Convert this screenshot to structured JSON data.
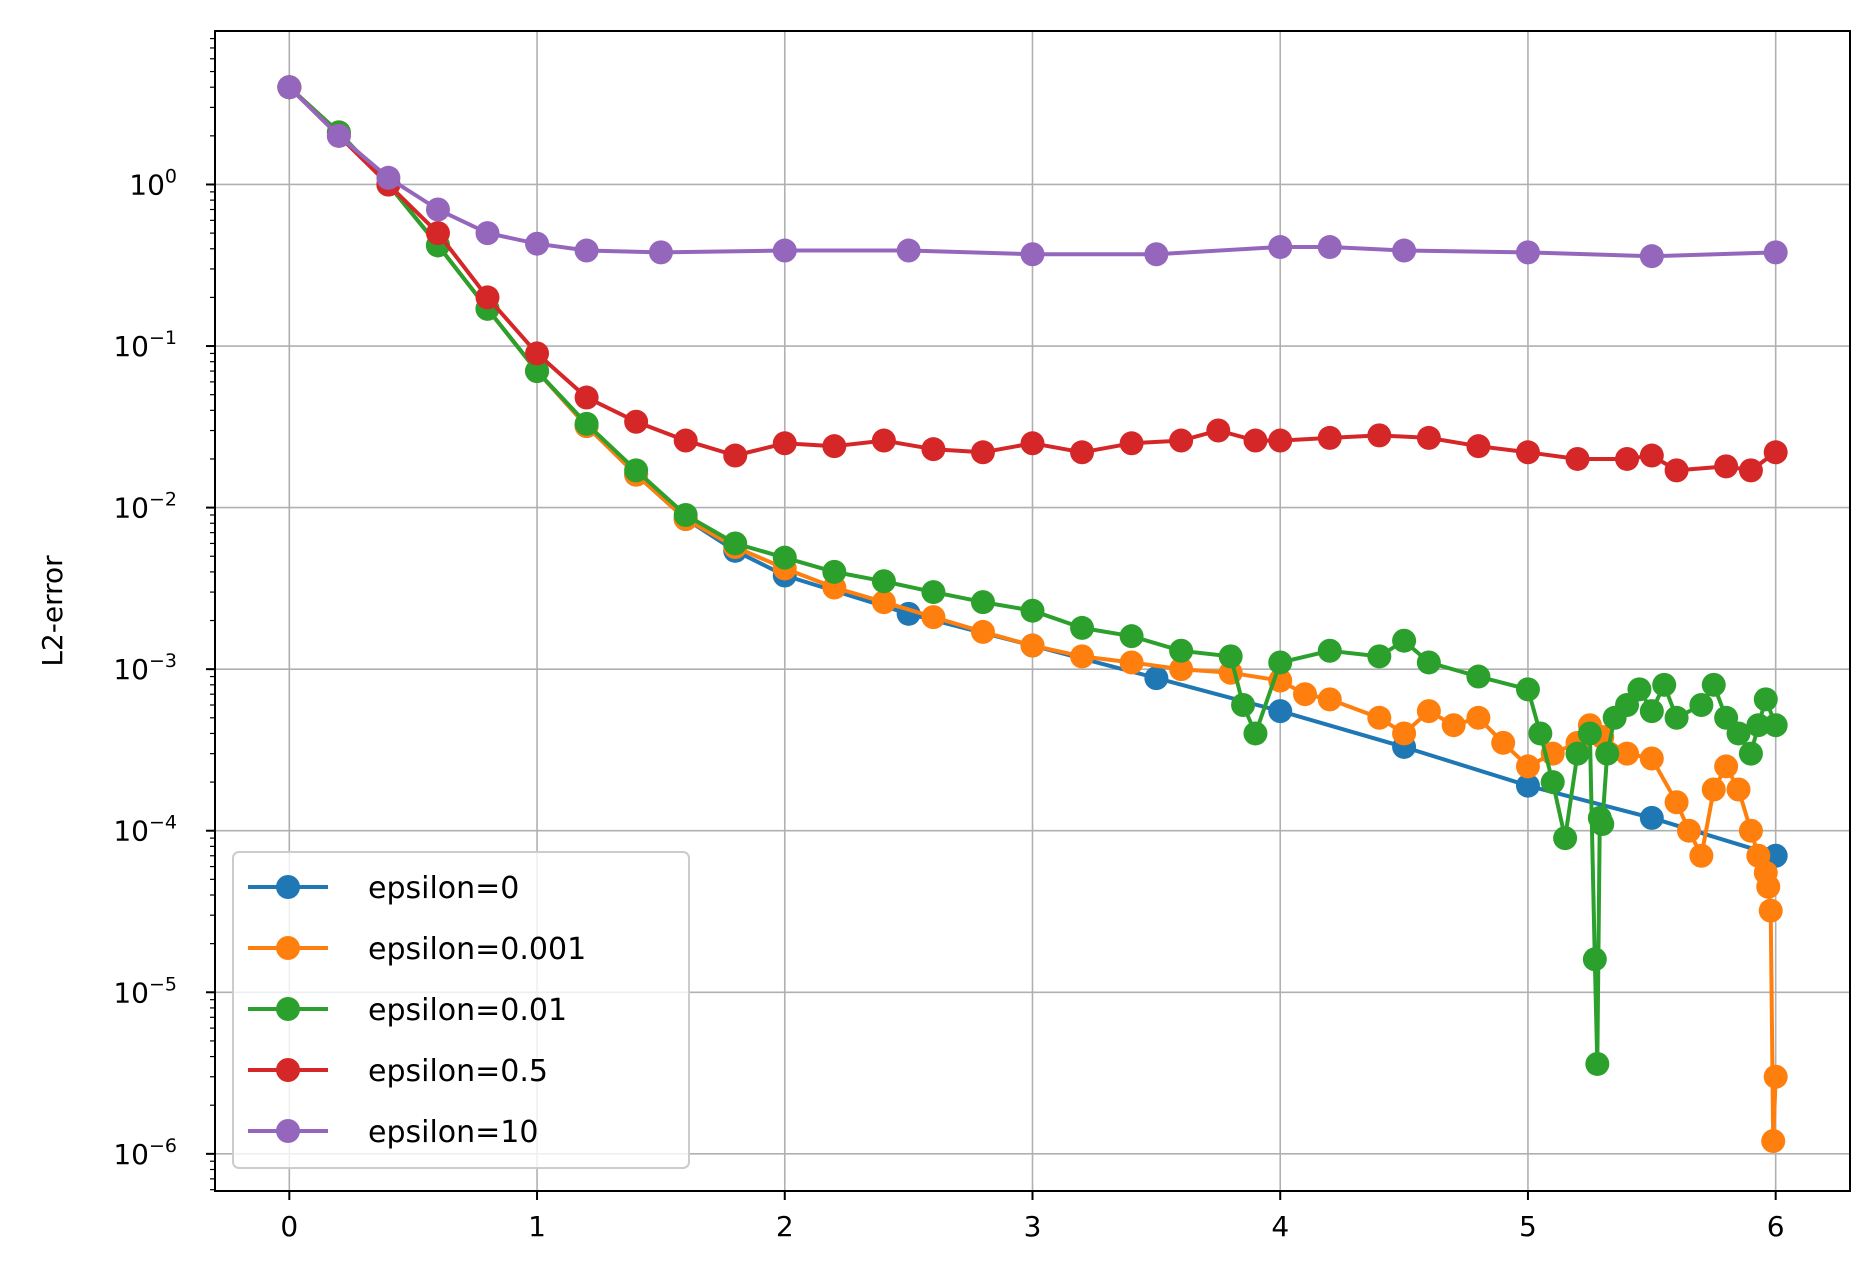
{
  "chart_data": {
    "type": "line",
    "title": "",
    "xlabel": "",
    "ylabel": "L2-error",
    "yscale": "log",
    "xlim": [
      -0.3,
      6.3
    ],
    "ylim_log10": [
      -6.23,
      0.95
    ],
    "x_ticks": [
      {
        "value": 0,
        "label": "0"
      },
      {
        "value": 1,
        "label": "1"
      },
      {
        "value": 2,
        "label": "2"
      },
      {
        "value": 3,
        "label": "3"
      },
      {
        "value": 4,
        "label": "4"
      },
      {
        "value": 5,
        "label": "5"
      },
      {
        "value": 6,
        "label": "6"
      }
    ],
    "y_ticks": [
      {
        "exp": 0,
        "base": "10",
        "sup": "0"
      },
      {
        "exp": -1,
        "base": "10",
        "sup": "−1"
      },
      {
        "exp": -2,
        "base": "10",
        "sup": "−2"
      },
      {
        "exp": -3,
        "base": "10",
        "sup": "−3"
      },
      {
        "exp": -4,
        "base": "10",
        "sup": "−4"
      },
      {
        "exp": -5,
        "base": "10",
        "sup": "−5"
      },
      {
        "exp": -6,
        "base": "10",
        "sup": "−6"
      }
    ],
    "grid": true,
    "legend_position": "lower-left",
    "series": [
      {
        "name": "epsilon=0",
        "color": "#1f77b4",
        "x": [
          0,
          0.2,
          0.4,
          0.6,
          0.8,
          1.0,
          1.2,
          1.4,
          1.6,
          1.8,
          2.0,
          2.5,
          3.0,
          3.5,
          4.0,
          4.5,
          5.0,
          5.5,
          6.0
        ],
        "y": [
          4.0,
          2.1,
          1.0,
          0.42,
          0.17,
          0.07,
          0.032,
          0.016,
          0.0085,
          0.0054,
          0.0038,
          0.0022,
          0.0014,
          0.00088,
          0.00055,
          0.00033,
          0.00019,
          0.00012,
          7e-05
        ]
      },
      {
        "name": "epsilon=0.001",
        "color": "#ff7f0e",
        "x": [
          0,
          0.2,
          0.4,
          0.6,
          0.8,
          1.0,
          1.2,
          1.4,
          1.6,
          1.8,
          2.0,
          2.2,
          2.4,
          2.6,
          2.8,
          3.0,
          3.2,
          3.4,
          3.6,
          3.8,
          4.0,
          4.1,
          4.2,
          4.4,
          4.5,
          4.6,
          4.7,
          4.8,
          4.9,
          5.0,
          5.1,
          5.2,
          5.25,
          5.3,
          5.4,
          5.5,
          5.6,
          5.65,
          5.7,
          5.75,
          5.8,
          5.85,
          5.9,
          5.93,
          5.96,
          5.97,
          5.98,
          5.99,
          6.0
        ],
        "y": [
          4.0,
          2.1,
          1.0,
          0.42,
          0.17,
          0.07,
          0.032,
          0.016,
          0.0085,
          0.0057,
          0.0042,
          0.0032,
          0.0026,
          0.0021,
          0.0017,
          0.0014,
          0.0012,
          0.0011,
          0.001,
          0.00095,
          0.00085,
          0.0007,
          0.00065,
          0.0005,
          0.0004,
          0.00055,
          0.00045,
          0.0005,
          0.00035,
          0.00025,
          0.0003,
          0.00035,
          0.00045,
          0.00038,
          0.0003,
          0.00028,
          0.00015,
          0.0001,
          7e-05,
          0.00018,
          0.00025,
          0.00018,
          0.0001,
          7e-05,
          5.5e-05,
          4.5e-05,
          3.2e-05,
          1.2e-06,
          3e-06
        ]
      },
      {
        "name": "epsilon=0.01",
        "color": "#2ca02c",
        "x": [
          0,
          0.2,
          0.4,
          0.6,
          0.8,
          1.0,
          1.2,
          1.4,
          1.6,
          1.8,
          2.0,
          2.2,
          2.4,
          2.6,
          2.8,
          3.0,
          3.2,
          3.4,
          3.6,
          3.8,
          3.85,
          3.9,
          4.0,
          4.2,
          4.4,
          4.5,
          4.6,
          4.8,
          5.0,
          5.05,
          5.1,
          5.15,
          5.2,
          5.25,
          5.27,
          5.28,
          5.29,
          5.3,
          5.32,
          5.35,
          5.4,
          5.45,
          5.5,
          5.55,
          5.6,
          5.7,
          5.75,
          5.8,
          5.85,
          5.9,
          5.93,
          5.96,
          6.0
        ],
        "y": [
          4.0,
          2.1,
          1.0,
          0.42,
          0.17,
          0.07,
          0.033,
          0.017,
          0.009,
          0.006,
          0.0049,
          0.004,
          0.0035,
          0.003,
          0.0026,
          0.0023,
          0.0018,
          0.0016,
          0.0013,
          0.0012,
          0.0006,
          0.0004,
          0.0011,
          0.0013,
          0.0012,
          0.0015,
          0.0011,
          0.0009,
          0.00075,
          0.0004,
          0.0002,
          9e-05,
          0.0003,
          0.0004,
          1.6e-05,
          3.6e-06,
          0.00012,
          0.00011,
          0.0003,
          0.0005,
          0.0006,
          0.00075,
          0.00055,
          0.0008,
          0.0005,
          0.0006,
          0.0008,
          0.0005,
          0.0004,
          0.0003,
          0.00045,
          0.00065,
          0.00045
        ]
      },
      {
        "name": "epsilon=0.5",
        "color": "#d62728",
        "x": [
          0,
          0.2,
          0.4,
          0.6,
          0.8,
          1.0,
          1.2,
          1.4,
          1.6,
          1.8,
          2.0,
          2.2,
          2.4,
          2.6,
          2.8,
          3.0,
          3.2,
          3.4,
          3.6,
          3.75,
          3.9,
          4.0,
          4.2,
          4.4,
          4.6,
          4.8,
          5.0,
          5.2,
          5.4,
          5.5,
          5.6,
          5.8,
          5.9,
          6.0
        ],
        "y": [
          4.0,
          2.0,
          1.0,
          0.5,
          0.2,
          0.09,
          0.048,
          0.034,
          0.026,
          0.021,
          0.025,
          0.024,
          0.026,
          0.023,
          0.022,
          0.025,
          0.022,
          0.025,
          0.026,
          0.03,
          0.026,
          0.026,
          0.027,
          0.028,
          0.027,
          0.024,
          0.022,
          0.02,
          0.02,
          0.021,
          0.017,
          0.018,
          0.017,
          0.022
        ]
      },
      {
        "name": "epsilon=10",
        "color": "#9467bd",
        "x": [
          0,
          0.2,
          0.4,
          0.6,
          0.8,
          1.0,
          1.2,
          1.5,
          2.0,
          2.5,
          3.0,
          3.5,
          4.0,
          4.2,
          4.5,
          5.0,
          5.5,
          6.0
        ],
        "y": [
          4.0,
          2.0,
          1.1,
          0.7,
          0.5,
          0.43,
          0.39,
          0.38,
          0.39,
          0.39,
          0.37,
          0.37,
          0.41,
          0.41,
          0.39,
          0.38,
          0.36,
          0.38
        ]
      }
    ]
  }
}
